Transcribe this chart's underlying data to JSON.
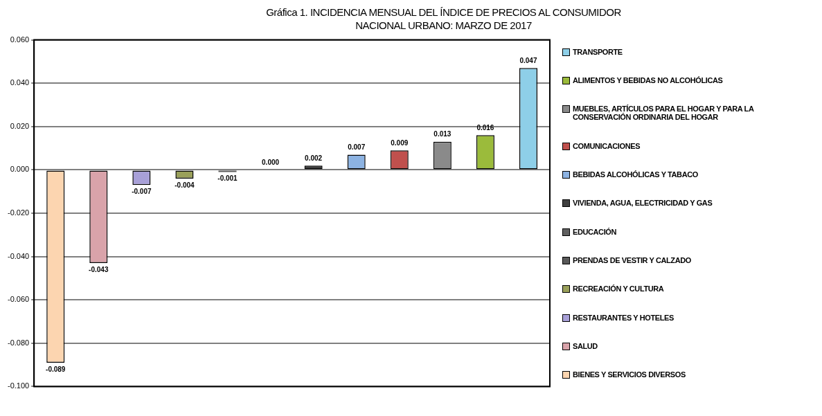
{
  "chart_data": {
    "type": "bar",
    "title": "Gráfica 1.  INCIDENCIA MENSUAL  DEL ÍNDICE DE PRECIOS AL CONSUMIDOR NACIONAL URBANO: MARZO DE 2017",
    "categories": [
      null,
      null,
      null,
      null,
      null,
      null,
      null,
      null,
      null,
      null,
      null,
      null
    ],
    "series": [
      {
        "name": "TRANSPORTE",
        "color": "#8ecfe8",
        "values": [
          null,
          null,
          null,
          null,
          null,
          null,
          null,
          null,
          null,
          null,
          null,
          0.047
        ],
        "value_labels": [
          null,
          null,
          null,
          null,
          null,
          null,
          null,
          null,
          null,
          null,
          null,
          "0.047"
        ]
      },
      {
        "name": "ALIMENTOS Y BEBIDAS NO ALCOHÓLICAS",
        "color": "#9bbb3b",
        "values": [
          null,
          null,
          null,
          null,
          null,
          null,
          null,
          null,
          null,
          null,
          0.016,
          null
        ],
        "value_labels": [
          null,
          null,
          null,
          null,
          null,
          null,
          null,
          null,
          null,
          null,
          "0.016",
          null
        ]
      },
      {
        "name": "MUEBLES, ARTÍCULOS PARA EL HOGAR Y PARA LA CONSERVACIÓN ORDINARIA DEL HOGAR",
        "color": "#8a8a8a",
        "values": [
          null,
          null,
          null,
          null,
          null,
          null,
          null,
          null,
          null,
          0.013,
          null,
          null
        ],
        "value_labels": [
          null,
          null,
          null,
          null,
          null,
          null,
          null,
          null,
          null,
          "0.013",
          null,
          null
        ]
      },
      {
        "name": "COMUNICACIONES",
        "color": "#c0504d",
        "values": [
          null,
          null,
          null,
          null,
          null,
          null,
          null,
          null,
          0.009,
          null,
          null,
          null
        ],
        "value_labels": [
          null,
          null,
          null,
          null,
          null,
          null,
          null,
          null,
          "0.009",
          null,
          null,
          null
        ]
      },
      {
        "name": "BEBIDAS ALCOHÓLICAS Y TABACO",
        "color": "#8db3e2",
        "values": [
          null,
          null,
          null,
          null,
          null,
          null,
          null,
          0.007,
          null,
          null,
          null,
          null
        ],
        "value_labels": [
          null,
          null,
          null,
          null,
          null,
          null,
          null,
          "0.007",
          null,
          null,
          null,
          null
        ]
      },
      {
        "name": "VIVIENDA, AGUA, ELECTRICIDAD Y GAS",
        "color": "#404040",
        "values": [
          null,
          null,
          null,
          null,
          null,
          null,
          0.002,
          null,
          null,
          null,
          null,
          null
        ],
        "value_labels": [
          null,
          null,
          null,
          null,
          null,
          null,
          "0.002",
          null,
          null,
          null,
          null,
          null
        ]
      },
      {
        "name": "EDUCACIÓN",
        "color": "#606060",
        "values": [
          null,
          null,
          null,
          null,
          null,
          0.0,
          null,
          null,
          null,
          null,
          null,
          null
        ],
        "value_labels": [
          null,
          null,
          null,
          null,
          null,
          "0.000",
          null,
          null,
          null,
          null,
          null,
          null
        ]
      },
      {
        "name": "PRENDAS DE VESTIR Y CALZADO",
        "color": "#595959",
        "values": [
          null,
          null,
          null,
          null,
          -0.001,
          null,
          null,
          null,
          null,
          null,
          null,
          null
        ],
        "value_labels": [
          null,
          null,
          null,
          null,
          "-0.001",
          null,
          null,
          null,
          null,
          null,
          null,
          null
        ]
      },
      {
        "name": "RECREACIÓN Y CULTURA",
        "color": "#9aa05a",
        "values": [
          null,
          null,
          null,
          -0.004,
          null,
          null,
          null,
          null,
          null,
          null,
          null,
          null
        ],
        "value_labels": [
          null,
          null,
          null,
          "-0.004",
          null,
          null,
          null,
          null,
          null,
          null,
          null,
          null
        ]
      },
      {
        "name": "RESTAURANTES Y HOTELES",
        "color": "#a8a0d8",
        "values": [
          null,
          null,
          -0.007,
          null,
          null,
          null,
          null,
          null,
          null,
          null,
          null,
          null
        ],
        "value_labels": [
          null,
          null,
          "-0.007",
          null,
          null,
          null,
          null,
          null,
          null,
          null,
          null,
          null
        ]
      },
      {
        "name": "SALUD",
        "color": "#d9a3aa",
        "values": [
          null,
          -0.043,
          null,
          null,
          null,
          null,
          null,
          null,
          null,
          null,
          null,
          null
        ],
        "value_labels": [
          null,
          "-0.043",
          null,
          null,
          null,
          null,
          null,
          null,
          null,
          null,
          null,
          null
        ]
      },
      {
        "name": "BIENES Y SERVICIOS DIVERSOS",
        "color": "#fcd5b0",
        "values": [
          -0.089,
          null,
          null,
          null,
          null,
          null,
          null,
          null,
          null,
          null,
          null,
          null
        ],
        "value_labels": [
          "-0.089",
          null,
          null,
          null,
          null,
          null,
          null,
          null,
          null,
          null,
          null,
          null
        ]
      }
    ],
    "ylim": [
      -0.1,
      0.06
    ],
    "yticks": [
      {
        "value": -0.1,
        "label": "-0.100"
      },
      {
        "value": -0.08,
        "label": "-0.080"
      },
      {
        "value": -0.06,
        "label": "-0.060"
      },
      {
        "value": -0.04,
        "label": "-0.040"
      },
      {
        "value": -0.02,
        "label": "-0.020"
      },
      {
        "value": 0,
        "label": "0.000"
      },
      {
        "value": 0.02,
        "label": "0.020"
      },
      {
        "value": 0.04,
        "label": "0.040"
      },
      {
        "value": 0.06,
        "label": "0.060"
      }
    ],
    "grid": "y",
    "legend": "right"
  }
}
